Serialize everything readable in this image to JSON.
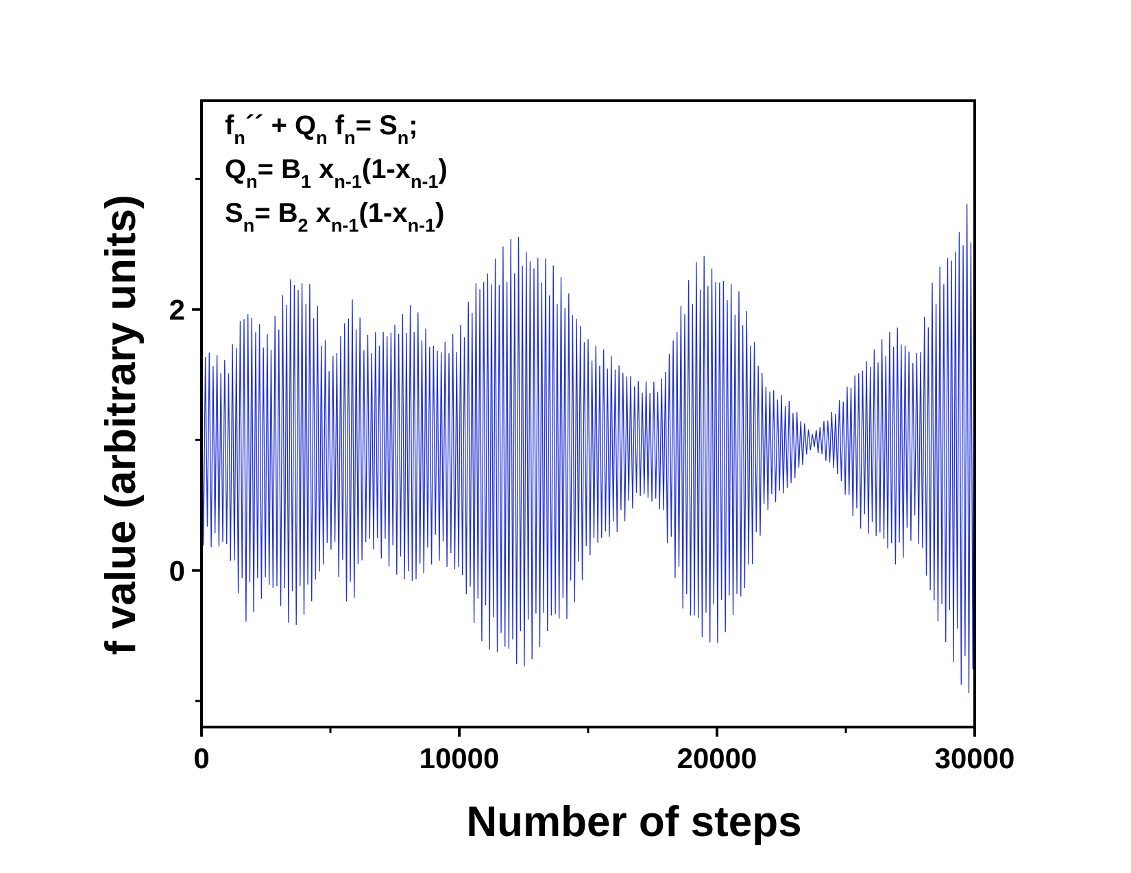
{
  "chart_data": {
    "type": "line",
    "xlabel": "Number of steps",
    "ylabel": "f value (arbitrary units)",
    "xlim": [
      0,
      30000
    ],
    "ylim": [
      -1.2,
      3.6
    ],
    "x_ticks": [
      "0",
      "10000",
      "20000",
      "30000"
    ],
    "y_ticks": [
      "0",
      "2"
    ],
    "x_minor_ticks": [
      5000,
      15000,
      25000
    ],
    "y_minor_ticks": [
      -1,
      1,
      3
    ],
    "grid": false,
    "series_color": "#1f2fd0",
    "equations": {
      "line1": {
        "parts": [
          "f",
          "n",
          "´´ + Q",
          "n",
          " f",
          "n",
          "= S",
          "n",
          ";"
        ]
      },
      "line2": {
        "parts": [
          "Q",
          "n",
          "= B",
          "1",
          " x",
          "n-1",
          "(1-x",
          "n-1",
          ")"
        ]
      },
      "line3": {
        "parts": [
          "S",
          "n",
          "= B",
          "2",
          " x",
          "n-1",
          "(1-x",
          "n-1",
          ")"
        ]
      }
    },
    "envelope": {
      "center": 1.0,
      "steps": [
        0,
        1000,
        1700,
        2600,
        3500,
        4300,
        5000,
        5800,
        6400,
        7200,
        8200,
        9100,
        10000,
        10700,
        11500,
        12300,
        13200,
        14200,
        15100,
        16000,
        17000,
        17800,
        18700,
        19400,
        20100,
        21000,
        21900,
        22800,
        23700,
        24600,
        25400,
        26300,
        27000,
        27700,
        28400,
        29100,
        29700,
        30000
      ],
      "upper": [
        1.75,
        1.6,
        2.1,
        1.8,
        2.35,
        2.2,
        1.6,
        2.15,
        1.8,
        1.9,
        2.05,
        1.75,
        1.85,
        2.3,
        2.45,
        2.6,
        2.45,
        2.2,
        1.75,
        1.65,
        1.45,
        1.45,
        2.15,
        2.45,
        2.35,
        2.1,
        1.45,
        1.3,
        1.05,
        1.25,
        1.55,
        1.75,
        1.9,
        1.65,
        2.25,
        2.55,
        2.85,
        2.9
      ],
      "lower": [
        0.2,
        0.1,
        -0.4,
        -0.2,
        -0.45,
        -0.3,
        0.15,
        -0.35,
        0.15,
        0.05,
        -0.2,
        0.1,
        -0.1,
        -0.5,
        -0.7,
        -0.8,
        -0.6,
        -0.4,
        0.1,
        0.25,
        0.55,
        0.45,
        -0.35,
        -0.6,
        -0.55,
        -0.3,
        0.45,
        0.6,
        0.95,
        0.75,
        0.35,
        0.2,
        0.0,
        0.3,
        -0.4,
        -0.65,
        -1.05,
        -1.0
      ]
    },
    "oscillation_period_steps": 150
  }
}
